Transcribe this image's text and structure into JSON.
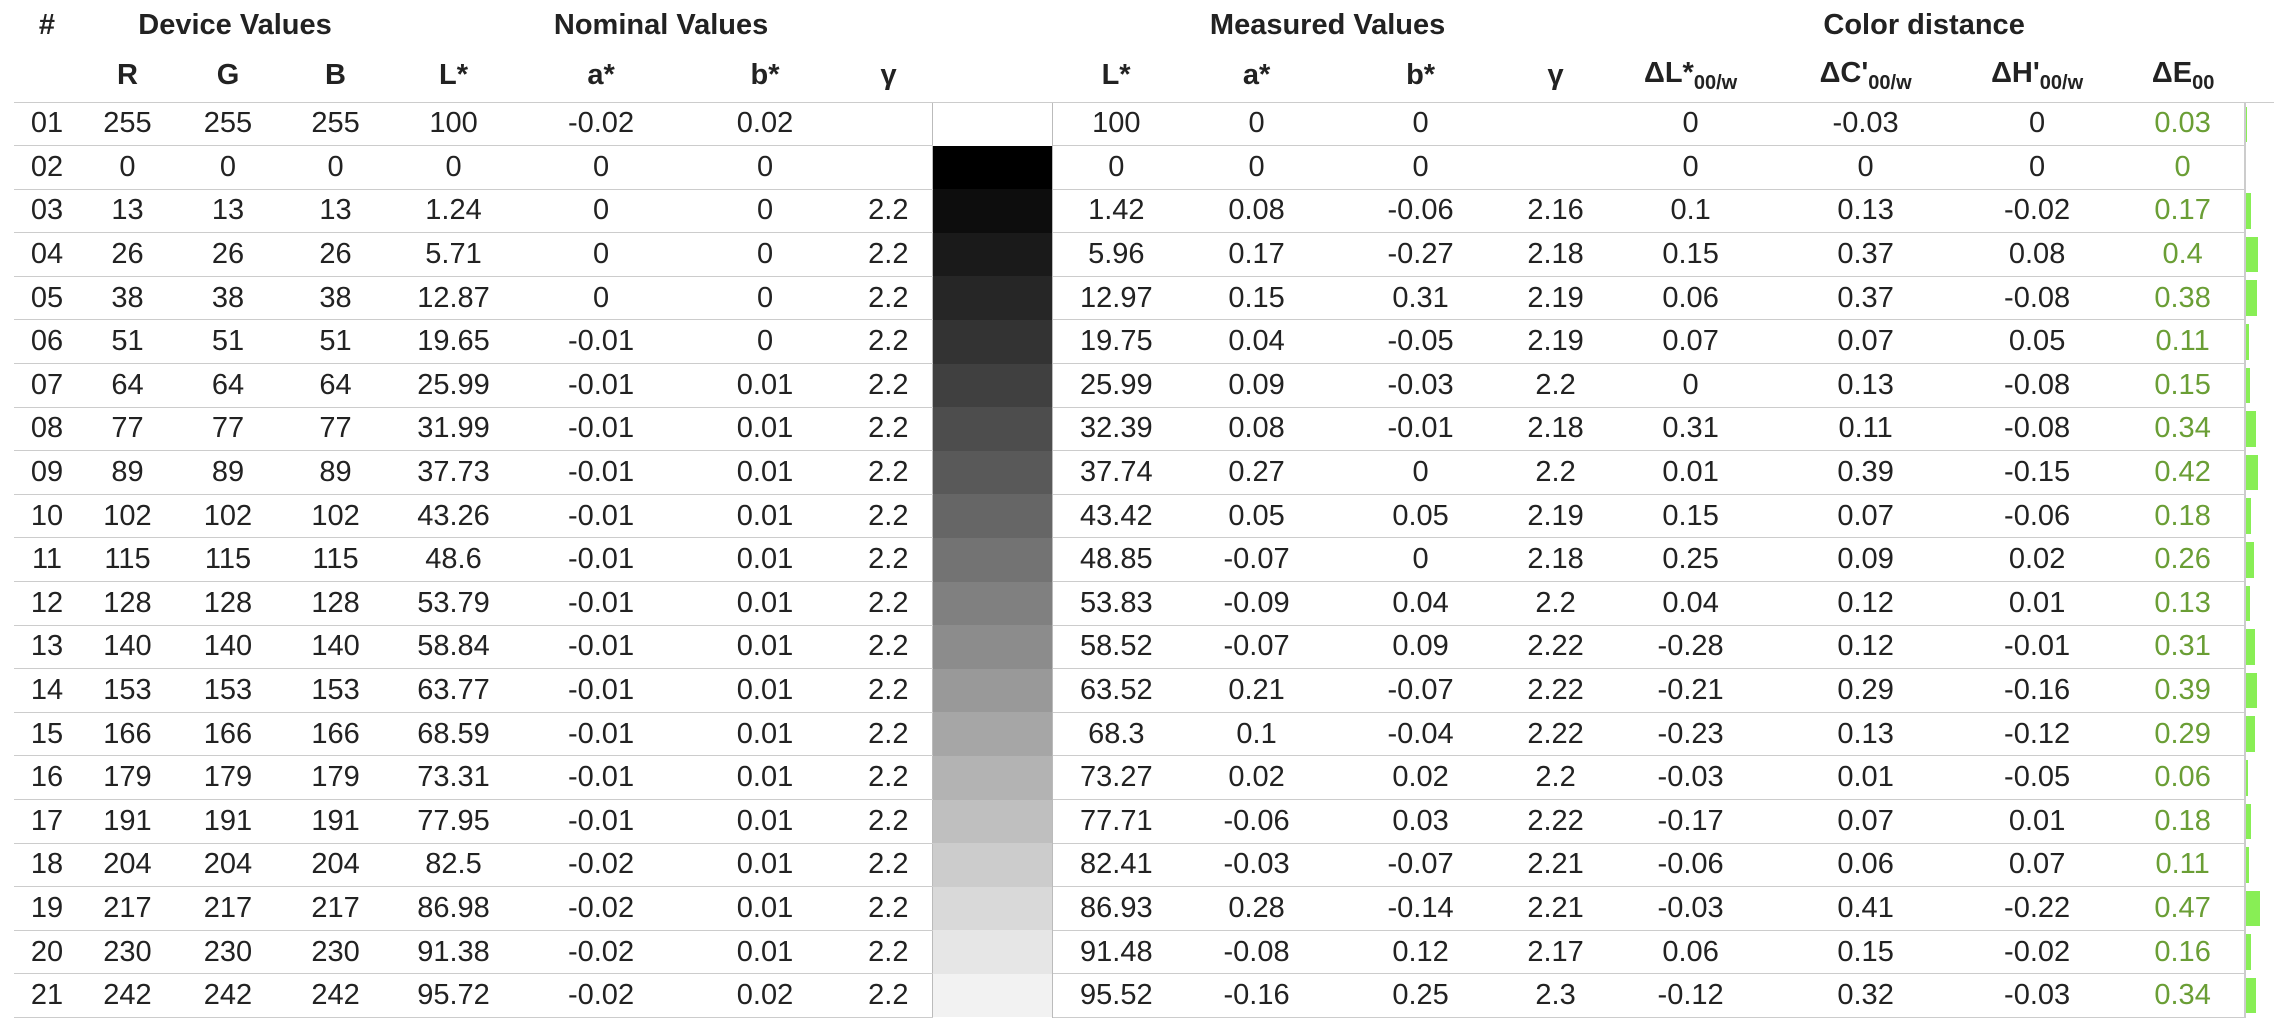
{
  "table": {
    "groups": [
      "#",
      "Device Values",
      "Nominal Values",
      "Measured Values",
      "Color distance"
    ],
    "columns": [
      {
        "text": "R"
      },
      {
        "text": "G"
      },
      {
        "text": "B"
      },
      {
        "text": "L*"
      },
      {
        "text": "a*"
      },
      {
        "text": "b*"
      },
      {
        "text": "γ"
      },
      {
        "text": "L*"
      },
      {
        "text": "a*"
      },
      {
        "text": "b*"
      },
      {
        "text": "γ"
      },
      {
        "text": "ΔL*",
        "sub": "00/w"
      },
      {
        "text": "ΔC'",
        "sub": "00/w"
      },
      {
        "text": "ΔH'",
        "sub": "00/w"
      },
      {
        "text": "ΔE",
        "sub": "00"
      }
    ],
    "rows": [
      [
        "01",
        "255",
        "255",
        "255",
        "100",
        "-0.02",
        "0.02",
        null,
        "100",
        "0",
        "0",
        null,
        "0",
        "-0.03",
        "0",
        "0.03"
      ],
      [
        "02",
        "0",
        "0",
        "0",
        "0",
        "0",
        "0",
        null,
        "0",
        "0",
        "0",
        null,
        "0",
        "0",
        "0",
        "0"
      ],
      [
        "03",
        "13",
        "13",
        "13",
        "1.24",
        "0",
        "0",
        "2.2",
        "1.42",
        "0.08",
        "-0.06",
        "2.16",
        "0.1",
        "0.13",
        "-0.02",
        "0.17"
      ],
      [
        "04",
        "26",
        "26",
        "26",
        "5.71",
        "0",
        "0",
        "2.2",
        "5.96",
        "0.17",
        "-0.27",
        "2.18",
        "0.15",
        "0.37",
        "0.08",
        "0.4"
      ],
      [
        "05",
        "38",
        "38",
        "38",
        "12.87",
        "0",
        "0",
        "2.2",
        "12.97",
        "0.15",
        "0.31",
        "2.19",
        "0.06",
        "0.37",
        "-0.08",
        "0.38"
      ],
      [
        "06",
        "51",
        "51",
        "51",
        "19.65",
        "-0.01",
        "0",
        "2.2",
        "19.75",
        "0.04",
        "-0.05",
        "2.19",
        "0.07",
        "0.07",
        "0.05",
        "0.11"
      ],
      [
        "07",
        "64",
        "64",
        "64",
        "25.99",
        "-0.01",
        "0.01",
        "2.2",
        "25.99",
        "0.09",
        "-0.03",
        "2.2",
        "0",
        "0.13",
        "-0.08",
        "0.15"
      ],
      [
        "08",
        "77",
        "77",
        "77",
        "31.99",
        "-0.01",
        "0.01",
        "2.2",
        "32.39",
        "0.08",
        "-0.01",
        "2.18",
        "0.31",
        "0.11",
        "-0.08",
        "0.34"
      ],
      [
        "09",
        "89",
        "89",
        "89",
        "37.73",
        "-0.01",
        "0.01",
        "2.2",
        "37.74",
        "0.27",
        "0",
        "2.2",
        "0.01",
        "0.39",
        "-0.15",
        "0.42"
      ],
      [
        "10",
        "102",
        "102",
        "102",
        "43.26",
        "-0.01",
        "0.01",
        "2.2",
        "43.42",
        "0.05",
        "0.05",
        "2.19",
        "0.15",
        "0.07",
        "-0.06",
        "0.18"
      ],
      [
        "11",
        "115",
        "115",
        "115",
        "48.6",
        "-0.01",
        "0.01",
        "2.2",
        "48.85",
        "-0.07",
        "0",
        "2.18",
        "0.25",
        "0.09",
        "0.02",
        "0.26"
      ],
      [
        "12",
        "128",
        "128",
        "128",
        "53.79",
        "-0.01",
        "0.01",
        "2.2",
        "53.83",
        "-0.09",
        "0.04",
        "2.2",
        "0.04",
        "0.12",
        "0.01",
        "0.13"
      ],
      [
        "13",
        "140",
        "140",
        "140",
        "58.84",
        "-0.01",
        "0.01",
        "2.2",
        "58.52",
        "-0.07",
        "0.09",
        "2.22",
        "-0.28",
        "0.12",
        "-0.01",
        "0.31"
      ],
      [
        "14",
        "153",
        "153",
        "153",
        "63.77",
        "-0.01",
        "0.01",
        "2.2",
        "63.52",
        "0.21",
        "-0.07",
        "2.22",
        "-0.21",
        "0.29",
        "-0.16",
        "0.39"
      ],
      [
        "15",
        "166",
        "166",
        "166",
        "68.59",
        "-0.01",
        "0.01",
        "2.2",
        "68.3",
        "0.1",
        "-0.04",
        "2.22",
        "-0.23",
        "0.13",
        "-0.12",
        "0.29"
      ],
      [
        "16",
        "179",
        "179",
        "179",
        "73.31",
        "-0.01",
        "0.01",
        "2.2",
        "73.27",
        "0.02",
        "0.02",
        "2.2",
        "-0.03",
        "0.01",
        "-0.05",
        "0.06"
      ],
      [
        "17",
        "191",
        "191",
        "191",
        "77.95",
        "-0.01",
        "0.01",
        "2.2",
        "77.71",
        "-0.06",
        "0.03",
        "2.22",
        "-0.17",
        "0.07",
        "0.01",
        "0.18"
      ],
      [
        "18",
        "204",
        "204",
        "204",
        "82.5",
        "-0.02",
        "0.01",
        "2.2",
        "82.41",
        "-0.03",
        "-0.07",
        "2.21",
        "-0.06",
        "0.06",
        "0.07",
        "0.11"
      ],
      [
        "19",
        "217",
        "217",
        "217",
        "86.98",
        "-0.02",
        "0.01",
        "2.2",
        "86.93",
        "0.28",
        "-0.14",
        "2.21",
        "-0.03",
        "0.41",
        "-0.22",
        "0.47"
      ],
      [
        "20",
        "230",
        "230",
        "230",
        "91.38",
        "-0.02",
        "0.01",
        "2.2",
        "91.48",
        "-0.08",
        "0.12",
        "2.17",
        "0.06",
        "0.15",
        "-0.02",
        "0.16"
      ],
      [
        "21",
        "242",
        "242",
        "242",
        "95.72",
        "-0.02",
        "0.02",
        "2.2",
        "95.52",
        "-0.16",
        "0.25",
        "2.3",
        "-0.12",
        "0.32",
        "-0.03",
        "0.34"
      ]
    ]
  }
}
